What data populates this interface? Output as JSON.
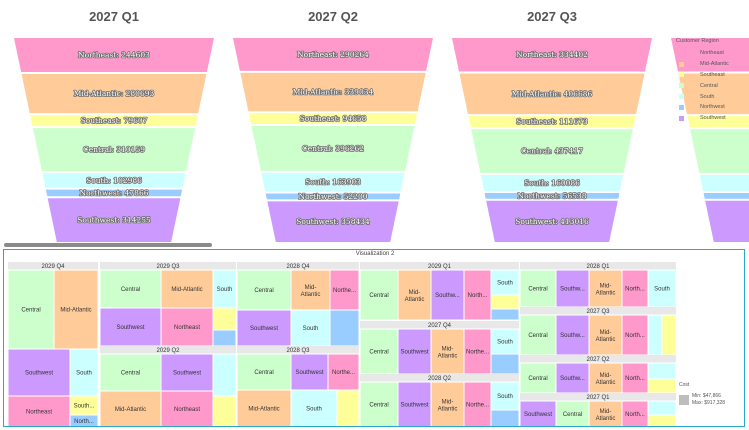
{
  "chart_data": [
    {
      "type": "funnel",
      "stages": [
        "Northeast",
        "Mid-Atlantic",
        "Southeast",
        "Central",
        "South",
        "Northwest",
        "Southwest"
      ],
      "colors": [
        "#ff99cc",
        "#ffcc99",
        "#ffff99",
        "#ccffcc",
        "#ccffff",
        "#99ccff",
        "#cc99ff"
      ],
      "series": [
        {
          "name": "2027 Q1",
          "values": [
            244603,
            280693,
            79607,
            310159,
            102986,
            47866,
            314255
          ]
        },
        {
          "name": "2027 Q2",
          "values": [
            290264,
            339034,
            94658,
            396262,
            163903,
            52200,
            358434
          ]
        },
        {
          "name": "2027 Q3",
          "values": [
            334402,
            406686,
            111673,
            437417,
            160086,
            56538,
            413016
          ]
        }
      ]
    },
    {
      "type": "treemap",
      "title": "Visualization 2",
      "legend_title": "Customer Region",
      "legend": [
        "Northeast",
        "Mid-Atlantic",
        "Southeast",
        "Central",
        "South",
        "Northwest",
        "Southwest"
      ],
      "colors": {
        "Northeast": "#ff99cc",
        "Mid-Atlantic": "#ffcc99",
        "Southeast": "#ffff99",
        "Central": "#ccffcc",
        "South": "#ccffff",
        "Northwest": "#99ccff",
        "Southwest": "#cc99ff"
      },
      "size_legend": {
        "title": "Cost",
        "min": "Min: $47,866",
        "max": "Max: $917,328"
      },
      "groups": [
        {
          "label": "2029 Q4",
          "cells": [
            "Central",
            "Mid-Atlantic",
            "Southwest",
            "South",
            "Northeast",
            "South...",
            "North..."
          ]
        },
        {
          "label": "2029 Q3",
          "cells": [
            "Central",
            "Mid-Atlantic",
            "South",
            "Southwest",
            "Northeast",
            "",
            ""
          ]
        },
        {
          "label": "2029 Q2",
          "cells": [
            "Central",
            "Southwest",
            "Mid-Atlantic",
            "Northeast",
            "",
            ""
          ]
        },
        {
          "label": "2028 Q4",
          "cells": [
            "Central",
            "Mid-Atlantic",
            "Northe...",
            "Southwest",
            "South",
            ""
          ]
        },
        {
          "label": "2028 Q3",
          "cells": [
            "Central",
            "Southwest",
            "Northe...",
            "Mid-Atlantic",
            "South",
            ""
          ]
        },
        {
          "label": "2029 Q1",
          "cells": [
            "Central",
            "Mid-Atlantic",
            "Southw...",
            "North...",
            "South",
            "",
            ""
          ]
        },
        {
          "label": "2027 Q4",
          "cells": [
            "Central",
            "Southwest",
            "Mid-Atlantic",
            "Northe...",
            "South",
            ""
          ]
        },
        {
          "label": "2028 Q2",
          "cells": [
            "Central",
            "Southwest",
            "Mid-Atlantic",
            "Northe...",
            "South",
            ""
          ]
        },
        {
          "label": "2028 Q1",
          "cells": [
            "Central",
            "Southw...",
            "Mid-Atlantic",
            "North...",
            "South",
            ""
          ]
        },
        {
          "label": "2027 Q3",
          "cells": [
            "Central",
            "Southw...",
            "Mid-Atlantic",
            "North...",
            "",
            ""
          ]
        },
        {
          "label": "2027 Q2",
          "cells": [
            "Central",
            "Southw...",
            "Mid-Atlantic",
            "North...",
            "",
            ""
          ]
        },
        {
          "label": "2027 Q1",
          "cells": [
            "Southwest",
            "Central",
            "Mid-Atlantic",
            "North...",
            "",
            ""
          ]
        }
      ]
    }
  ]
}
